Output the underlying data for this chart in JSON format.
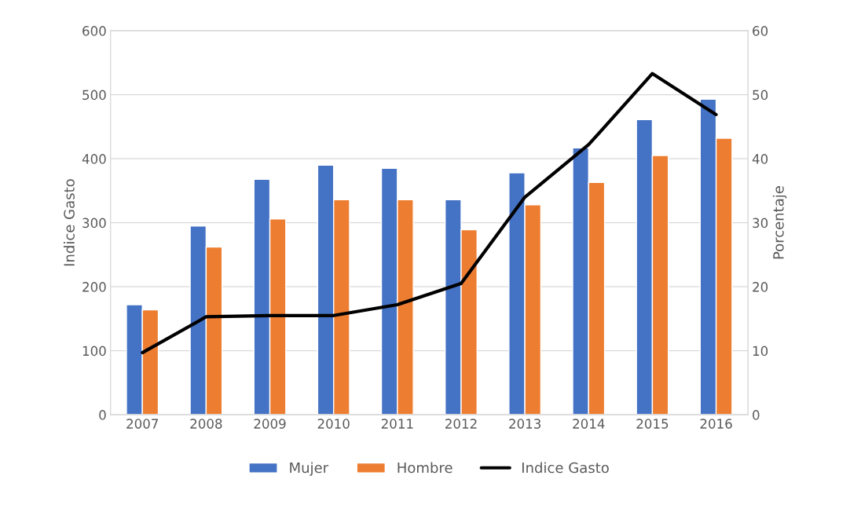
{
  "chart_data": {
    "type": "bar",
    "ylabel": "Indice Gasto",
    "y2label": "Porcentaje",
    "categories": [
      "2007",
      "2008",
      "2009",
      "2010",
      "2011",
      "2012",
      "2013",
      "2014",
      "2015",
      "2016"
    ],
    "series": [
      {
        "name": "Mujer",
        "color": "#4472c4",
        "values": [
          172,
          295,
          368,
          390,
          385,
          336,
          378,
          417,
          461,
          493
        ]
      },
      {
        "name": "Hombre",
        "color": "#ed7d31",
        "values": [
          164,
          262,
          306,
          336,
          336,
          289,
          328,
          363,
          405,
          432
        ]
      },
      {
        "name": "Indice Gasto",
        "type": "line",
        "axis": "y2",
        "color": "#000000",
        "values": [
          9.7,
          15.3,
          15.5,
          15.5,
          17.2,
          20.5,
          34,
          42.2,
          53.3,
          46.9
        ]
      }
    ],
    "ylim": [
      0,
      600
    ],
    "yticks": [
      0,
      100,
      200,
      300,
      400,
      500,
      600
    ],
    "y2lim": [
      0,
      60
    ],
    "y2ticks": [
      0,
      10,
      20,
      30,
      40,
      50,
      60
    ],
    "grid": "y",
    "legend": "bottom"
  }
}
